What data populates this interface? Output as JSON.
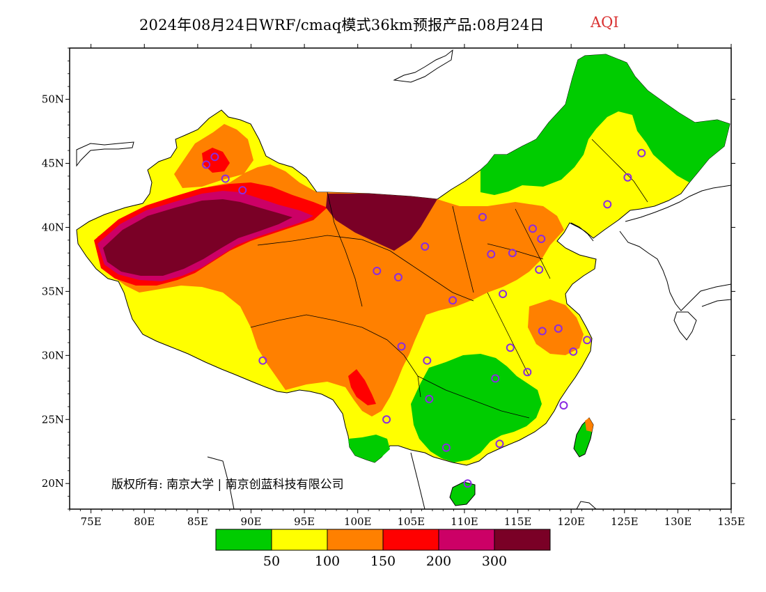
{
  "title": {
    "main": "2024年08月24日WRF/cmaq模式36km预报产品:08月24日",
    "variable": "AQI",
    "variable_color": "#d93030"
  },
  "map": {
    "projection": "lat-lon",
    "lon_range": [
      73,
      135
    ],
    "lat_range": [
      18,
      54
    ],
    "lon_ticks": [
      "75E",
      "80E",
      "85E",
      "90E",
      "95E",
      "100E",
      "105E",
      "110E",
      "115E",
      "120E",
      "125E",
      "130E",
      "135E"
    ],
    "lat_ticks": [
      "20N",
      "25N",
      "30N",
      "35N",
      "40N",
      "45N",
      "50N"
    ],
    "copyright": "版权所有: 南京大学 | 南京创蓝科技有限公司",
    "stations": [
      {
        "lon": 126.6,
        "lat": 45.8
      },
      {
        "lon": 125.3,
        "lat": 43.9
      },
      {
        "lon": 123.4,
        "lat": 41.8
      },
      {
        "lon": 116.4,
        "lat": 39.9
      },
      {
        "lon": 117.2,
        "lat": 39.1
      },
      {
        "lon": 114.5,
        "lat": 38.0
      },
      {
        "lon": 112.5,
        "lat": 37.9
      },
      {
        "lon": 111.7,
        "lat": 40.8
      },
      {
        "lon": 106.3,
        "lat": 38.5
      },
      {
        "lon": 103.8,
        "lat": 36.1
      },
      {
        "lon": 101.8,
        "lat": 36.6
      },
      {
        "lon": 108.9,
        "lat": 34.3
      },
      {
        "lon": 113.6,
        "lat": 34.8
      },
      {
        "lon": 117.0,
        "lat": 36.7
      },
      {
        "lon": 117.3,
        "lat": 31.9
      },
      {
        "lon": 118.8,
        "lat": 32.1
      },
      {
        "lon": 121.5,
        "lat": 31.2
      },
      {
        "lon": 120.2,
        "lat": 30.3
      },
      {
        "lon": 114.3,
        "lat": 30.6
      },
      {
        "lon": 112.9,
        "lat": 28.2
      },
      {
        "lon": 115.9,
        "lat": 28.7
      },
      {
        "lon": 119.3,
        "lat": 26.1
      },
      {
        "lon": 113.3,
        "lat": 23.1
      },
      {
        "lon": 108.3,
        "lat": 22.8
      },
      {
        "lon": 110.3,
        "lat": 20.0
      },
      {
        "lon": 106.7,
        "lat": 26.6
      },
      {
        "lon": 102.7,
        "lat": 25.0
      },
      {
        "lon": 104.1,
        "lat": 30.7
      },
      {
        "lon": 106.5,
        "lat": 29.6
      },
      {
        "lon": 91.1,
        "lat": 29.6
      },
      {
        "lon": 87.6,
        "lat": 43.8
      },
      {
        "lon": 86.6,
        "lat": 45.5
      },
      {
        "lon": 85.8,
        "lat": 44.9
      },
      {
        "lon": 89.2,
        "lat": 42.9
      }
    ]
  },
  "legend": {
    "bins": [
      {
        "color": "#00cc00"
      },
      {
        "color": "#ffff00"
      },
      {
        "color": "#ff8000"
      },
      {
        "color": "#ff0000"
      },
      {
        "color": "#cc0066"
      },
      {
        "color": "#7a0026"
      }
    ],
    "labels": [
      "50",
      "100",
      "150",
      "200",
      "300"
    ]
  },
  "colors": {
    "good": "#00cc00",
    "moderate": "#ffff00",
    "usg": "#ff8000",
    "unhealthy": "#ff0000",
    "very_unhealthy": "#cc0066",
    "hazardous": "#7a0026",
    "station": "#8a2be2",
    "border": "#000000"
  }
}
